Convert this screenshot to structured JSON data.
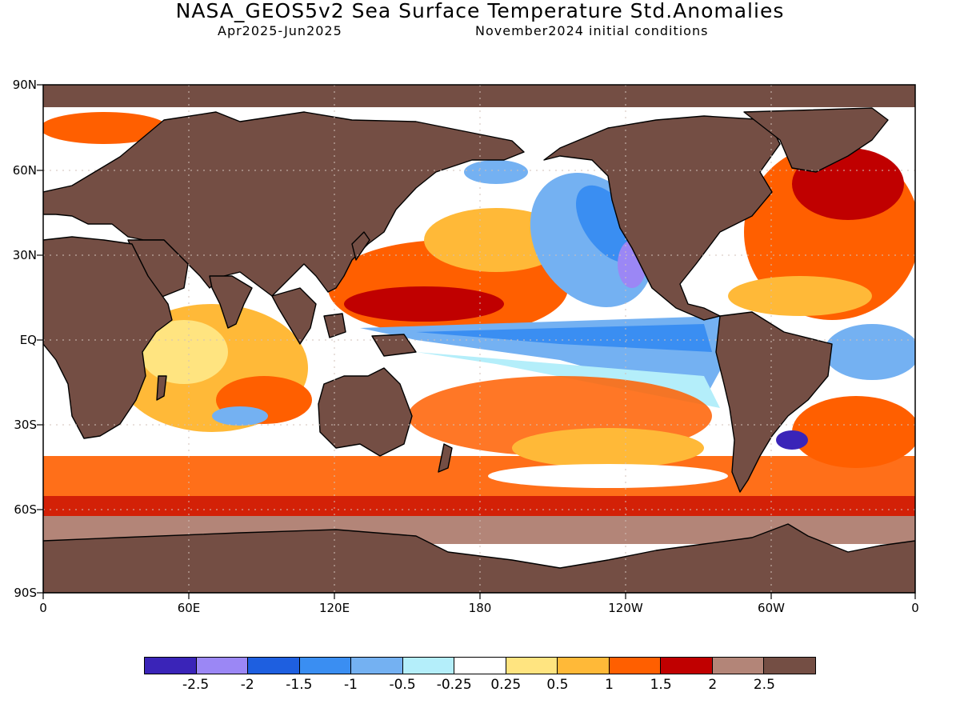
{
  "header": {
    "title": "NASA_GEOS5v2 Sea Surface Temperature Std.Anomalies",
    "subtitle_left": "Apr2025-Jun2025",
    "subtitle_right": "November2024 initial conditions"
  },
  "axes": {
    "lat_labels": [
      "90N",
      "60N",
      "30N",
      "EQ",
      "30S",
      "60S",
      "90S"
    ],
    "lon_labels": [
      "0",
      "60E",
      "120E",
      "180",
      "120W",
      "60W",
      "0"
    ]
  },
  "colorbar": {
    "labels": [
      "-2.5",
      "-2",
      "-1.5",
      "-1",
      "-0.5",
      "-0.25",
      "0.25",
      "0.5",
      "1",
      "1.5",
      "2",
      "2.5"
    ],
    "colors": [
      "#3a24b8",
      "#9b87f5",
      "#1e5fe0",
      "#3a8ef2",
      "#74b1f2",
      "#b4eefa",
      "#ffffff",
      "#ffe480",
      "#ffb938",
      "#ff5f00",
      "#c00000",
      "#b38578",
      "#744e44"
    ]
  },
  "colors": {
    "land": "#744e44",
    "coast": "#000000",
    "grid": "#d0c0b8"
  }
}
